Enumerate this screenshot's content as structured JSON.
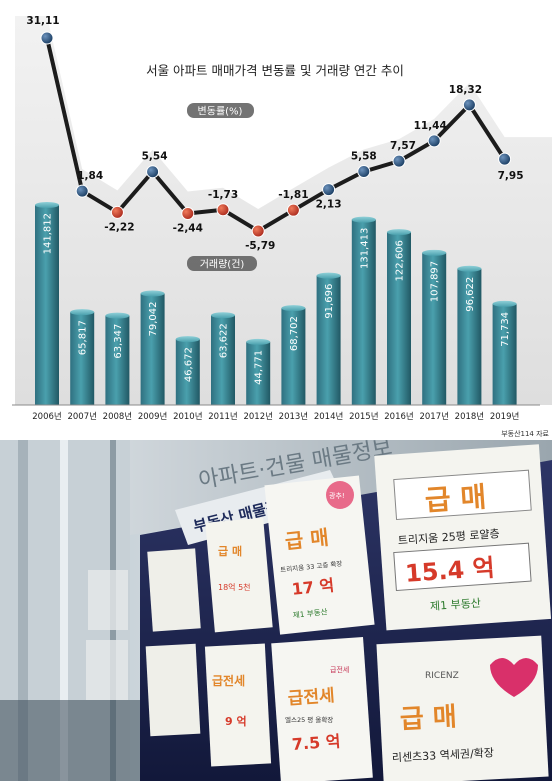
{
  "chart_data": {
    "type": "bar+line",
    "title": "서울 아파트 매매가격 변동률 및 거래량 연간 추이",
    "categories": [
      "2006년",
      "2007년",
      "2008년",
      "2009년",
      "2010년",
      "2011년",
      "2012년",
      "2013년",
      "2014년",
      "2015년",
      "2016년",
      "2017년",
      "2018년",
      "2019년"
    ],
    "series": [
      {
        "name": "변동률(%)",
        "kind": "line",
        "values": [
          31.11,
          1.84,
          -2.22,
          5.54,
          -2.44,
          -1.73,
          -5.79,
          -1.81,
          2.13,
          5.58,
          7.57,
          11.44,
          18.32,
          7.95
        ],
        "labels": [
          "31,11",
          "1,84",
          "-2,22",
          "5,54",
          "-2,44",
          "-1,73",
          "-5,79",
          "-1,81",
          "2,13",
          "5,58",
          "7,57",
          "11,44",
          "18,32",
          "7,95"
        ]
      },
      {
        "name": "거래량(건)",
        "kind": "bar",
        "values": [
          141812,
          65817,
          63347,
          79042,
          46672,
          63622,
          44771,
          68702,
          91696,
          131413,
          122606,
          107897,
          96622,
          71734
        ],
        "labels": [
          "141,812",
          "65,817",
          "63,347",
          "79,042",
          "46,672",
          "63,622",
          "44,771",
          "68,702",
          "91,696",
          "131,413",
          "122,606",
          "107,897",
          "96,622",
          "71,734"
        ]
      }
    ],
    "source": "부동산114 자료",
    "colors": {
      "bar": "#2f7f8c",
      "marker_positive": "#1f4f7a",
      "marker_negative": "#c0392b",
      "line": "#222222"
    }
  },
  "photo": {
    "sign_top": "아파트·건물 매물정보",
    "sign_board": "부동산 매물정보",
    "cards": [
      {
        "badge": "",
        "headline": "급  매",
        "line1": "트리지움 25평 로얄층",
        "price": "15.4 억",
        "agency": "제1 부동산"
      },
      {
        "badge": "광추!",
        "headline": "급  매",
        "line1": "트리지움 33 고층 확장",
        "price": "17 억",
        "agency": "제1 부동산"
      },
      {
        "badge": "",
        "headline": "급  매",
        "line1": "리센츠33 역세권/확장",
        "price": "",
        "agency": "RICENZ"
      },
      {
        "badge": "급전세",
        "headline": "급전세",
        "line1": "엘스25 평 올확장",
        "price": "7.5 억",
        "agency": ""
      },
      {
        "badge": "급전세",
        "headline": "급전세",
        "line1": "",
        "price": "9 억",
        "agency": ""
      },
      {
        "badge": "",
        "headline": "급  매",
        "line1": "18억 5천",
        "price": "",
        "agency": ""
      }
    ]
  }
}
